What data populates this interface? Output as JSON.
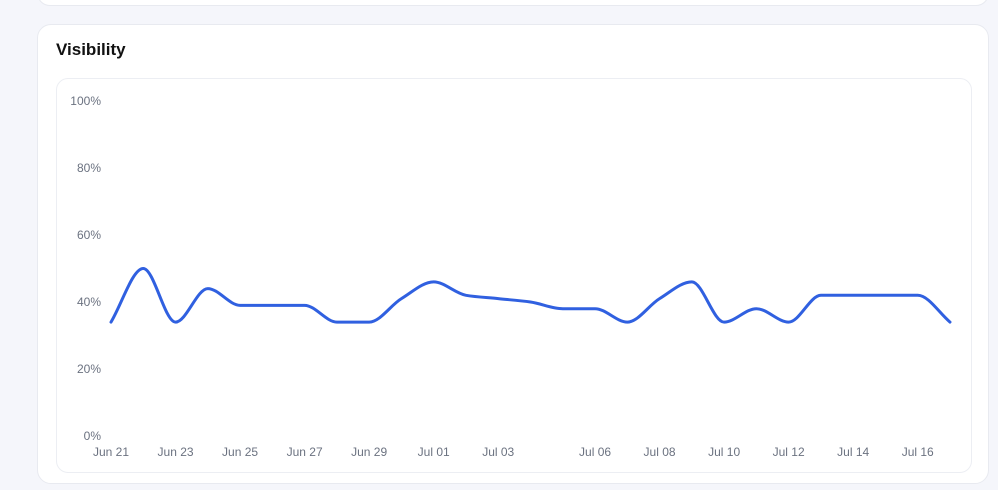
{
  "card": {
    "title": "Visibility"
  },
  "chart_data": {
    "type": "line",
    "title": "Visibility",
    "xlabel": "",
    "ylabel": "",
    "ylim": [
      0,
      100
    ],
    "grid": false,
    "x_tick_labels": [
      "Jun 21",
      "Jun 23",
      "Jun 25",
      "Jun 27",
      "Jun 29",
      "Jul 01",
      "Jul 03",
      "Jul 06",
      "Jul 08",
      "Jul 10",
      "Jul 12",
      "Jul 14",
      "Jul 16"
    ],
    "y_tick_labels": [
      "0%",
      "20%",
      "40%",
      "60%",
      "80%",
      "100%"
    ],
    "y_ticks": [
      0,
      20,
      40,
      60,
      80,
      100
    ],
    "color": "#3060e0",
    "series": [
      {
        "x": [
          "Jun 21",
          "Jun 22",
          "Jun 23",
          "Jun 24",
          "Jun 25",
          "Jun 26",
          "Jun 27",
          "Jun 28",
          "Jun 29",
          "Jun 30",
          "Jul 01",
          "Jul 02",
          "Jul 03",
          "Jul 04",
          "Jul 05",
          "Jul 06",
          "Jul 07",
          "Jul 08",
          "Jul 09",
          "Jul 10",
          "Jul 11",
          "Jul 12",
          "Jul 13",
          "Jul 14",
          "Jul 15",
          "Jul 16",
          "Jul 17"
        ],
        "values": [
          34,
          50,
          34,
          44,
          39,
          39,
          39,
          34,
          34,
          41,
          46,
          42,
          41,
          40,
          38,
          38,
          34,
          41,
          46,
          34,
          38,
          34,
          42,
          42,
          42,
          42,
          34
        ]
      }
    ]
  }
}
